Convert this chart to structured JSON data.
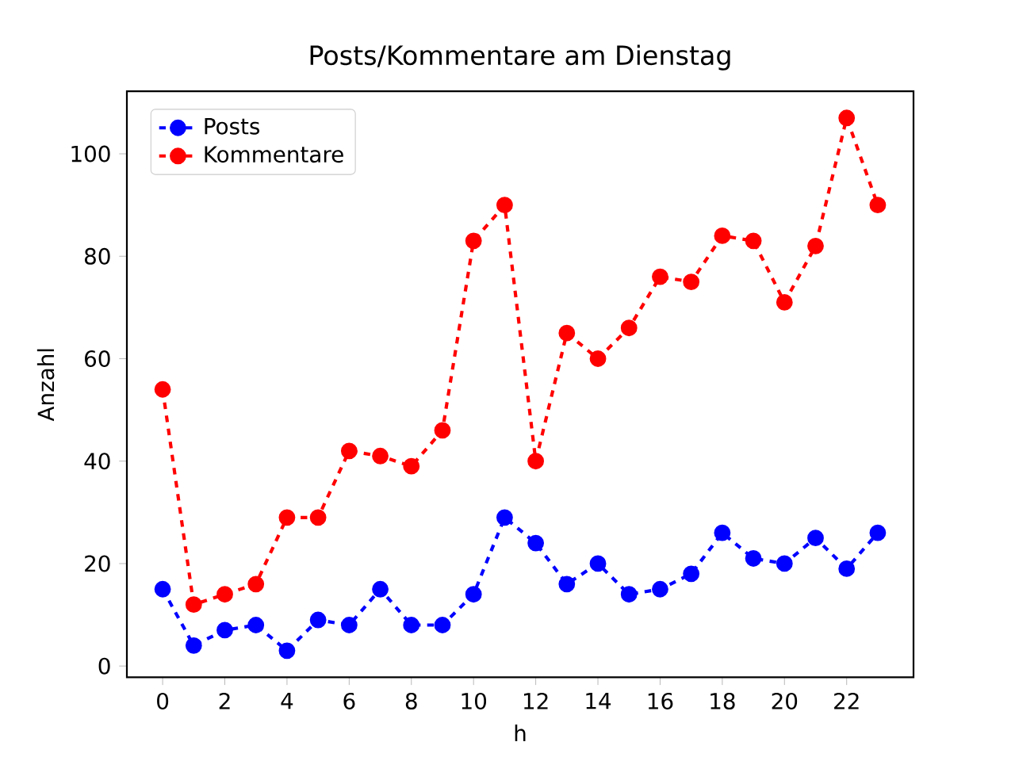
{
  "chart_data": {
    "type": "line",
    "title": "Posts/Kommentare am Dienstag",
    "xlabel": "h",
    "ylabel": "Anzahl",
    "x": [
      0,
      1,
      2,
      3,
      4,
      5,
      6,
      7,
      8,
      9,
      10,
      11,
      12,
      13,
      14,
      15,
      16,
      17,
      18,
      19,
      20,
      21,
      22,
      23
    ],
    "series": [
      {
        "name": "Posts",
        "color": "#0000ff",
        "values": [
          15,
          4,
          7,
          8,
          3,
          9,
          8,
          15,
          8,
          8,
          14,
          29,
          24,
          16,
          20,
          14,
          15,
          18,
          26,
          21,
          20,
          25,
          19,
          26
        ]
      },
      {
        "name": "Kommentare",
        "color": "#ff0000",
        "values": [
          54,
          12,
          14,
          16,
          29,
          29,
          42,
          41,
          39,
          46,
          83,
          90,
          40,
          65,
          60,
          66,
          76,
          75,
          84,
          83,
          71,
          82,
          107,
          90
        ]
      }
    ],
    "xlim": [
      -1.15,
      24.15
    ],
    "ylim": [
      -2.2,
      112.2
    ],
    "xticks": [
      0,
      2,
      4,
      6,
      8,
      10,
      12,
      14,
      16,
      18,
      20,
      22
    ],
    "yticks": [
      0,
      20,
      40,
      60,
      80,
      100
    ],
    "legend": "top left",
    "marker": "circle",
    "line_style": "dashed",
    "grid": false
  }
}
